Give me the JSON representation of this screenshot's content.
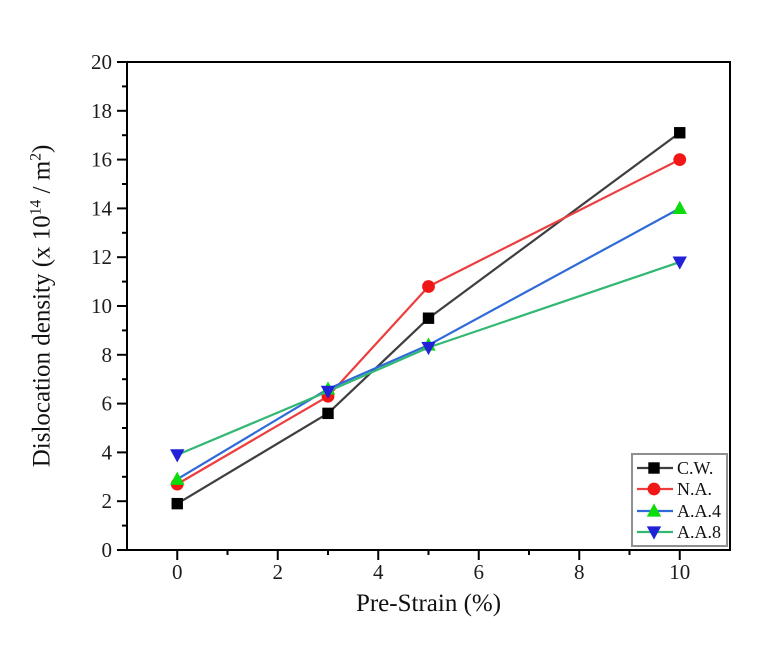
{
  "figure": {
    "background": "#ffffff"
  },
  "chart_data": {
    "type": "line",
    "title": "",
    "xlabel": "Pre-Strain (%)",
    "ylabel": "Dislocation density (x 10^14 / m^2)",
    "ylabel_parts": {
      "prefix": "Dislocation density (x 10",
      "sup1": "14",
      "mid": " / m",
      "sup2": "2",
      "suffix": ")"
    },
    "x": [
      0,
      3,
      5,
      10
    ],
    "series": [
      {
        "name": "C.W.",
        "marker": "square",
        "line_color": "#3f3f3f",
        "marker_color": "#000000",
        "values": [
          1.9,
          5.6,
          9.5,
          17.1
        ]
      },
      {
        "name": "N.A.",
        "marker": "circle",
        "line_color": "#ee3d3d",
        "marker_color": "#f21717",
        "values": [
          2.7,
          6.3,
          10.8,
          16.0
        ]
      },
      {
        "name": "A.A.4",
        "marker": "triangle-up",
        "line_color": "#2e6bd8",
        "marker_color": "#0cdc0c",
        "values": [
          2.9,
          6.6,
          8.4,
          14.0
        ]
      },
      {
        "name": "A.A.8",
        "marker": "triangle-down",
        "line_color": "#33b873",
        "marker_color": "#2121d8",
        "values": [
          3.9,
          6.5,
          8.3,
          11.8
        ]
      }
    ],
    "xlim": [
      -1,
      11
    ],
    "ylim": [
      0,
      20
    ],
    "x_major_ticks": [
      0,
      2,
      4,
      6,
      8,
      10
    ],
    "x_tick_labels": [
      "0",
      "2",
      "4",
      "6",
      "8",
      "10"
    ],
    "x_minor_ticks": [
      1,
      3,
      5,
      7,
      9
    ],
    "y_major_ticks": [
      0,
      2,
      4,
      6,
      8,
      10,
      12,
      14,
      16,
      18,
      20
    ],
    "y_tick_labels": [
      "0",
      "2",
      "4",
      "6",
      "8",
      "10",
      "12",
      "14",
      "16",
      "18",
      "20"
    ],
    "y_minor_ticks": [
      1,
      3,
      5,
      7,
      9,
      11,
      13,
      15,
      17,
      19
    ],
    "grid": false,
    "legend": {
      "position": "bottom-right",
      "entries": [
        "C.W.",
        "N.A.",
        "A.A.4",
        "A.A.8"
      ]
    },
    "colors": {
      "axis": "#000000",
      "text": "#1c1c1c",
      "legend_border": "#8f8f8f"
    }
  }
}
